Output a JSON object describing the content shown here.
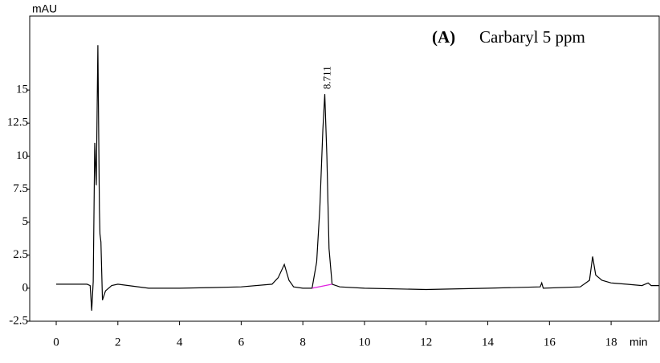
{
  "chart_data": {
    "type": "line",
    "y_label": "mAU",
    "x_label": "min",
    "panel_label": "(A)",
    "annotation": "Carbaryl 5 ppm",
    "color": "#000000",
    "x": [
      0,
      1.0,
      1.1,
      1.15,
      1.2,
      1.25,
      1.3,
      1.35,
      1.4,
      1.42,
      1.45,
      1.5,
      1.6,
      1.8,
      2.0,
      3,
      4,
      5,
      6,
      7,
      7.2,
      7.4,
      7.55,
      7.7,
      8.0,
      8.3,
      8.45,
      8.55,
      8.65,
      8.711,
      8.78,
      8.85,
      8.95,
      9.2,
      10,
      12,
      14,
      15.7,
      15.75,
      15.8,
      17,
      17.3,
      17.4,
      17.5,
      17.7,
      18,
      18.5,
      19,
      19.2,
      19.3,
      19.56
    ],
    "values": [
      0.3,
      0.3,
      0.2,
      -1.7,
      0.5,
      11,
      7.8,
      18.4,
      6,
      4.1,
      3.5,
      -0.9,
      -0.2,
      0.2,
      0.3,
      0,
      0,
      0.05,
      0.1,
      0.3,
      0.8,
      1.8,
      0.6,
      0.1,
      0,
      0,
      2,
      6,
      12,
      14.7,
      10,
      3,
      0.3,
      0.1,
      0,
      -0.1,
      0,
      0.1,
      0.4,
      0,
      0.1,
      0.6,
      2.4,
      1.0,
      0.6,
      0.4,
      0.3,
      0.2,
      0.4,
      0.2,
      0.2
    ],
    "baseline": {
      "x": [
        8.3,
        8.95
      ],
      "values": [
        0,
        0.3
      ],
      "color": "#e020e0"
    },
    "peak_times": [
      8.711
    ],
    "xlim": [
      -0.86,
      19.56
    ],
    "ylim": [
      -2.5,
      20.6
    ],
    "xticks": [
      0,
      2,
      4,
      6,
      8,
      10,
      12,
      14,
      16,
      18
    ],
    "yticks": [
      -2.5,
      0,
      2.5,
      5,
      7.5,
      10,
      12.5,
      15
    ]
  }
}
